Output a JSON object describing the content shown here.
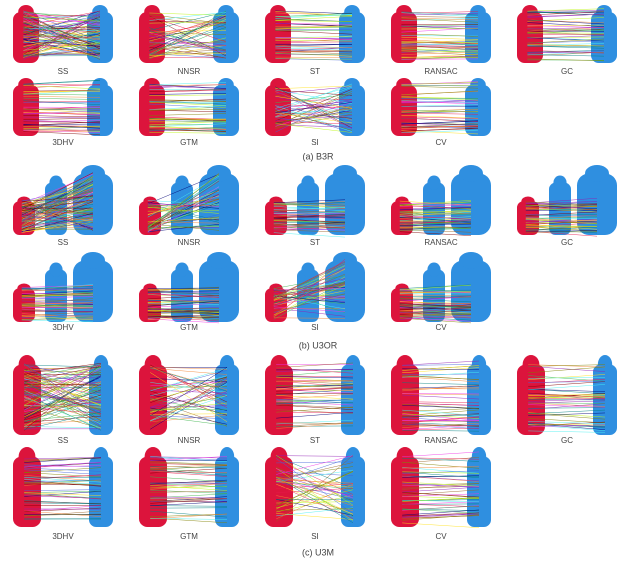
{
  "figure": {
    "panels": [
      {
        "caption": "(a) B3R",
        "labels": [
          "SS",
          "NNSR",
          "ST",
          "RANSAC",
          "GC",
          "3DHV",
          "GTM",
          "SI",
          "CV"
        ]
      },
      {
        "caption": "(b) U3OR",
        "labels": [
          "SS",
          "NNSR",
          "ST",
          "RANSAC",
          "GC",
          "3DHV",
          "GTM",
          "SI",
          "CV"
        ]
      },
      {
        "caption": "(c) U3M",
        "labels": [
          "SS",
          "NNSR",
          "ST",
          "RANSAC",
          "GC",
          "3DHV",
          "GTM",
          "SI",
          "CV"
        ]
      }
    ]
  }
}
